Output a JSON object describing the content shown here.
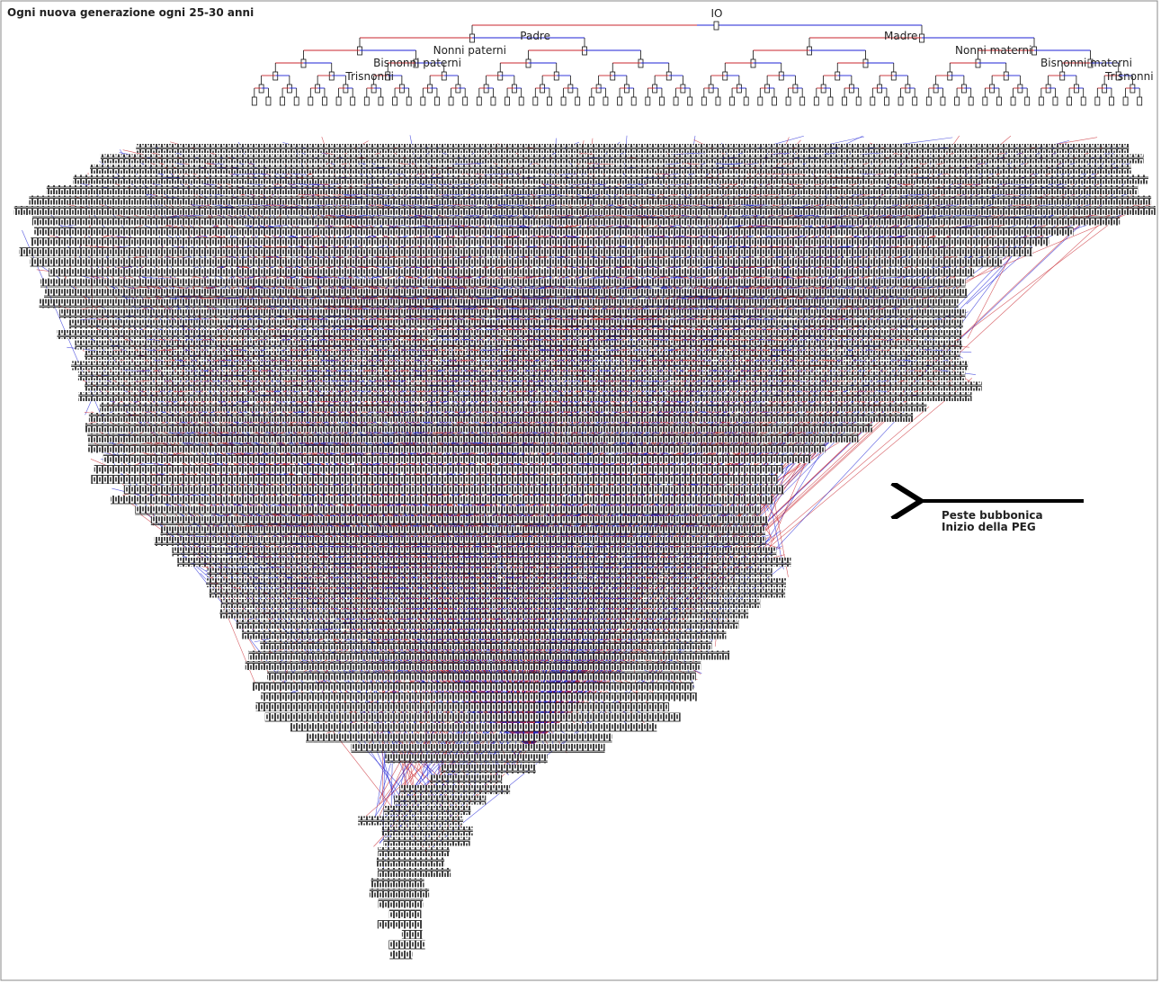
{
  "header": {
    "title": "Ogni nuova generazione ogni 25-30 anni"
  },
  "labels": {
    "root": "IO",
    "father": "Padre",
    "mother": "Madre",
    "paternal_grandparents": "Nonni paterni",
    "maternal_grandparents": "Nonni materni",
    "paternal_great_grandparents": "Bisnonni paterni",
    "maternal_great_grandparents": "Bisnonni materni",
    "great_great_left": "Trisnonni",
    "great_great_right": "Trisnonni"
  },
  "annotation": {
    "lines": [
      "Peste bubbonica",
      "Inizio della PEG"
    ]
  }
}
